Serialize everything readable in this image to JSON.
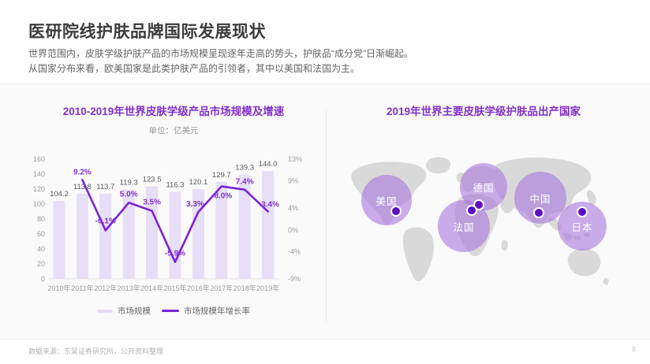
{
  "page": {
    "title": "医研院线护肤品牌国际发展现状",
    "paragraph_line1": "世界范围内，皮肤学级护肤产品的市场规模呈现逐年走高的势头，护肤品“成分党”日渐崛起。",
    "paragraph_line2": "从国家分布来看，欧美国家是此类护肤产品的引领者，其中以美国和法国为主。",
    "footer_source": "数据来源：东吴证券研究所，公开资料整理",
    "page_number": "8"
  },
  "colors": {
    "accent_purple": "#8230c8",
    "line_purple": "#7b24d6",
    "bar_fill": "#e7def7",
    "bubble_fill": "rgba(168,118,221,0.60)",
    "map_grey": "#d9d9d9",
    "dot_purple": "#5c10c2"
  },
  "chart_data": [
    {
      "type": "bar+line",
      "title": "2010-2019年世界皮肤学级产品市场规模及增速",
      "subtitle": "单位：亿美元",
      "categories": [
        "2010年",
        "2011年",
        "2012年",
        "2013年",
        "2014年",
        "2015年",
        "2016年",
        "2017年",
        "2018年",
        "2019年"
      ],
      "series": [
        {
          "name": "市场规模",
          "type": "bar",
          "values": [
            104.2,
            113.8,
            113.7,
            119.3,
            123.5,
            116.3,
            120.1,
            129.7,
            139.3,
            144.0
          ]
        },
        {
          "name": "市场规模年增长率",
          "type": "line",
          "values": [
            null,
            9.2,
            -0.1,
            5.0,
            3.5,
            -5.9,
            3.3,
            8.0,
            7.4,
            3.4
          ],
          "labels": [
            "",
            "9.2%",
            "-0.1%",
            "5.0%",
            "3.5%",
            "-5.9%",
            "3.3%",
            "8.0%",
            "7.4%",
            "3.4%"
          ]
        }
      ],
      "left_axis_ticks": [
        0,
        20,
        40,
        60,
        80,
        100,
        120,
        140,
        160
      ],
      "right_axis_ticks": [
        "13%",
        "9%",
        "4%",
        "0%",
        "-4%",
        "-9%"
      ],
      "ylim_left": [
        0,
        160
      ],
      "ylim_right": [
        -9,
        13
      ],
      "grid": false,
      "legend_position": "bottom"
    },
    {
      "type": "bubble-map",
      "title": "2019年世界主要皮肤学级护肤品出产国家",
      "countries": [
        {
          "label": "美国"
        },
        {
          "label": "德国"
        },
        {
          "label": "法国"
        },
        {
          "label": "中国"
        },
        {
          "label": "日本"
        }
      ]
    }
  ]
}
